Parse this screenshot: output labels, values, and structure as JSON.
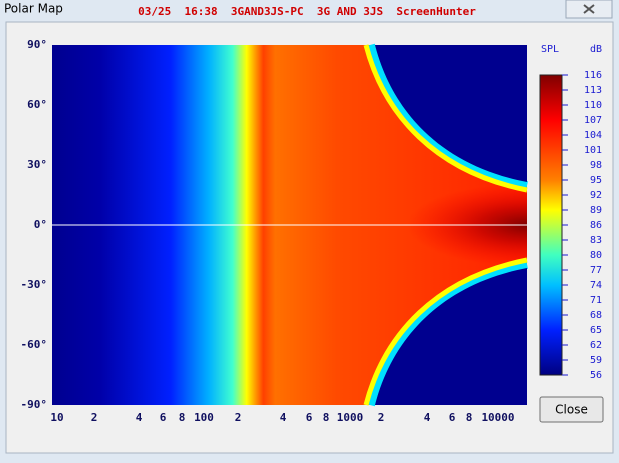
{
  "window": {
    "title": "Polar Map",
    "header": "03/25  16:38  3GAND3JS-PC  3G AND 3JS  ScreenHunter"
  },
  "plot": {
    "y_labels": [
      "90°",
      "60°",
      "30°",
      "0°",
      "-30°",
      "-60°",
      "-90°"
    ],
    "x_labels": [
      "10",
      "2",
      "4",
      "6",
      "8",
      "100",
      "2",
      "4",
      "6",
      "8",
      "1000",
      "2",
      "4",
      "6",
      "8",
      "10000"
    ]
  },
  "colorbar": {
    "quantity": "SPL",
    "unit": "dB",
    "labels": [
      116,
      113,
      110,
      107,
      104,
      101,
      98,
      95,
      92,
      89,
      86,
      83,
      80,
      77,
      74,
      71,
      68,
      65,
      62,
      59,
      56
    ]
  },
  "buttons": {
    "close": "Close"
  }
}
